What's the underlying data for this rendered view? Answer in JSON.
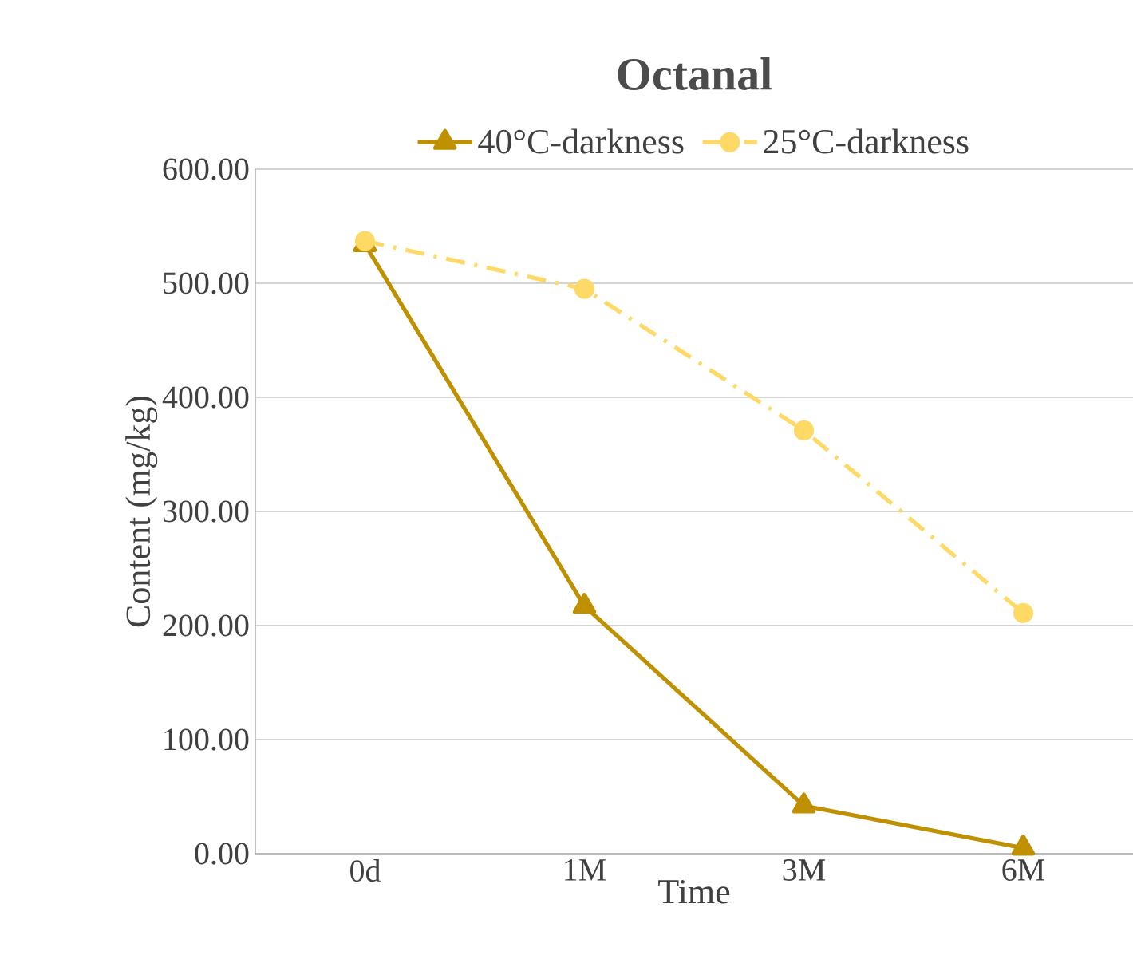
{
  "chart_data": {
    "type": "line",
    "title": "Octanal",
    "xlabel": "Time",
    "ylabel": "Content (mg/kg)",
    "categories": [
      "0d",
      "1M",
      "3M",
      "6M"
    ],
    "series": [
      {
        "name": "40°C-darkness",
        "color": "#bf9000",
        "marker": "triangle",
        "line_style": "solid",
        "values": [
          534,
          217,
          42,
          5
        ]
      },
      {
        "name": "25°C-darkness",
        "color": "#ffd966",
        "marker": "circle",
        "line_style": "dashed",
        "values": [
          537,
          495,
          371,
          211
        ]
      }
    ],
    "ylim": [
      0,
      600
    ],
    "yticks": [
      {
        "value": 0,
        "label": "0.00"
      },
      {
        "value": 100,
        "label": "100.00"
      },
      {
        "value": 200,
        "label": "200.00"
      },
      {
        "value": 300,
        "label": "300.00"
      },
      {
        "value": 400,
        "label": "400.00"
      },
      {
        "value": 500,
        "label": "500.00"
      },
      {
        "value": 600,
        "label": "600.00"
      }
    ],
    "grid": "y",
    "legend": "top"
  }
}
